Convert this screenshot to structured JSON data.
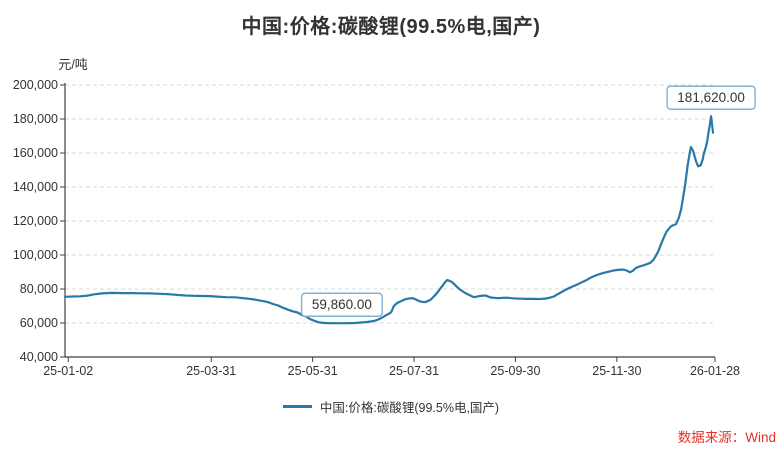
{
  "title": "中国:价格:碳酸锂(99.5%电,国产)",
  "source_note": "数据来源：Wind",
  "colors": {
    "line": "#2878a8",
    "grid": "#d9d9d9",
    "axis": "#404040",
    "text": "#333333",
    "annotation_border": "#7fb2d5",
    "source_text": "#e8302a",
    "background": "#ffffff"
  },
  "chart_data": {
    "type": "line",
    "title": "中国:价格:碳酸锂(99.5%电,国产)",
    "y_unit": "元/吨",
    "ylim": [
      40000,
      200000
    ],
    "y_ticks": [
      40000,
      60000,
      80000,
      100000,
      120000,
      140000,
      160000,
      180000,
      200000
    ],
    "x_tick_labels": [
      "25-01-02",
      "25-03-31",
      "25-05-31",
      "25-07-31",
      "25-09-30",
      "25-11-30",
      "26-01-28"
    ],
    "x_tick_pos": [
      0.005,
      0.225,
      0.381,
      0.537,
      0.693,
      0.849,
      1.0
    ],
    "grid": "horizontal-dashed",
    "legend": {
      "position": "bottom-center",
      "label": "中国:价格:碳酸锂(99.5%电,国产)"
    },
    "annotations": [
      {
        "text": "59,860.00",
        "point": [
          0.426,
          59860
        ]
      },
      {
        "text": "181,620.00",
        "point": [
          0.994,
          181620
        ]
      }
    ],
    "series": [
      {
        "name": "中国:价格:碳酸锂(99.5%电,国产)",
        "points": [
          [
            0.0,
            75400
          ],
          [
            0.012,
            75600
          ],
          [
            0.023,
            75700
          ],
          [
            0.035,
            76100
          ],
          [
            0.045,
            76900
          ],
          [
            0.057,
            77400
          ],
          [
            0.072,
            77700
          ],
          [
            0.088,
            77600
          ],
          [
            0.102,
            77600
          ],
          [
            0.117,
            77500
          ],
          [
            0.131,
            77400
          ],
          [
            0.145,
            77200
          ],
          [
            0.158,
            77000
          ],
          [
            0.171,
            76600
          ],
          [
            0.185,
            76200
          ],
          [
            0.198,
            76000
          ],
          [
            0.212,
            75900
          ],
          [
            0.223,
            75800
          ],
          [
            0.234,
            75500
          ],
          [
            0.248,
            75200
          ],
          [
            0.262,
            75100
          ],
          [
            0.274,
            74600
          ],
          [
            0.282,
            74300
          ],
          [
            0.291,
            73800
          ],
          [
            0.297,
            73400
          ],
          [
            0.305,
            72800
          ],
          [
            0.312,
            72300
          ],
          [
            0.32,
            71200
          ],
          [
            0.328,
            70300
          ],
          [
            0.335,
            69000
          ],
          [
            0.343,
            67800
          ],
          [
            0.351,
            66800
          ],
          [
            0.358,
            66200
          ],
          [
            0.365,
            64600
          ],
          [
            0.371,
            63800
          ],
          [
            0.377,
            62300
          ],
          [
            0.382,
            61500
          ],
          [
            0.388,
            60700
          ],
          [
            0.392,
            60300
          ],
          [
            0.4,
            60000
          ],
          [
            0.408,
            59900
          ],
          [
            0.417,
            59880
          ],
          [
            0.426,
            59860
          ],
          [
            0.436,
            59900
          ],
          [
            0.446,
            60000
          ],
          [
            0.455,
            60300
          ],
          [
            0.463,
            60500
          ],
          [
            0.47,
            60900
          ],
          [
            0.475,
            61200
          ],
          [
            0.481,
            61900
          ],
          [
            0.486,
            62800
          ],
          [
            0.491,
            63900
          ],
          [
            0.495,
            64800
          ],
          [
            0.499,
            65600
          ],
          [
            0.502,
            66500
          ],
          [
            0.506,
            70000
          ],
          [
            0.511,
            71800
          ],
          [
            0.515,
            72500
          ],
          [
            0.52,
            73400
          ],
          [
            0.525,
            74200
          ],
          [
            0.53,
            74500
          ],
          [
            0.535,
            74600
          ],
          [
            0.54,
            73800
          ],
          [
            0.545,
            72900
          ],
          [
            0.549,
            72500
          ],
          [
            0.554,
            72300
          ],
          [
            0.558,
            72800
          ],
          [
            0.563,
            73800
          ],
          [
            0.568,
            75800
          ],
          [
            0.574,
            78500
          ],
          [
            0.578,
            80600
          ],
          [
            0.582,
            82500
          ],
          [
            0.585,
            84200
          ],
          [
            0.588,
            85300
          ],
          [
            0.591,
            84900
          ],
          [
            0.595,
            84200
          ],
          [
            0.599,
            82800
          ],
          [
            0.603,
            81300
          ],
          [
            0.607,
            79900
          ],
          [
            0.612,
            78600
          ],
          [
            0.616,
            77600
          ],
          [
            0.62,
            76800
          ],
          [
            0.625,
            75900
          ],
          [
            0.629,
            75200
          ],
          [
            0.634,
            75500
          ],
          [
            0.638,
            75900
          ],
          [
            0.643,
            76100
          ],
          [
            0.648,
            76100
          ],
          [
            0.651,
            75500
          ],
          [
            0.655,
            75000
          ],
          [
            0.66,
            74800
          ],
          [
            0.666,
            74600
          ],
          [
            0.673,
            74800
          ],
          [
            0.68,
            74900
          ],
          [
            0.687,
            74600
          ],
          [
            0.694,
            74400
          ],
          [
            0.702,
            74300
          ],
          [
            0.709,
            74200
          ],
          [
            0.717,
            74200
          ],
          [
            0.726,
            74100
          ],
          [
            0.733,
            74200
          ],
          [
            0.74,
            74400
          ],
          [
            0.746,
            74900
          ],
          [
            0.752,
            75600
          ],
          [
            0.757,
            76700
          ],
          [
            0.763,
            78000
          ],
          [
            0.77,
            79500
          ],
          [
            0.777,
            80800
          ],
          [
            0.783,
            81800
          ],
          [
            0.789,
            82800
          ],
          [
            0.795,
            84000
          ],
          [
            0.802,
            85200
          ],
          [
            0.808,
            86500
          ],
          [
            0.814,
            87600
          ],
          [
            0.82,
            88500
          ],
          [
            0.826,
            89200
          ],
          [
            0.832,
            89800
          ],
          [
            0.838,
            90300
          ],
          [
            0.843,
            90800
          ],
          [
            0.849,
            91200
          ],
          [
            0.855,
            91400
          ],
          [
            0.86,
            91400
          ],
          [
            0.865,
            90700
          ],
          [
            0.869,
            89800
          ],
          [
            0.874,
            90800
          ],
          [
            0.878,
            92300
          ],
          [
            0.883,
            93100
          ],
          [
            0.889,
            93800
          ],
          [
            0.894,
            94500
          ],
          [
            0.9,
            95300
          ],
          [
            0.905,
            97000
          ],
          [
            0.909,
            99500
          ],
          [
            0.913,
            102500
          ],
          [
            0.917,
            106500
          ],
          [
            0.921,
            110000
          ],
          [
            0.925,
            113500
          ],
          [
            0.929,
            115500
          ],
          [
            0.932,
            116800
          ],
          [
            0.936,
            117600
          ],
          [
            0.94,
            118200
          ],
          [
            0.944,
            121500
          ],
          [
            0.948,
            127000
          ],
          [
            0.951,
            134000
          ],
          [
            0.954,
            141000
          ],
          [
            0.956,
            147000
          ],
          [
            0.958,
            153000
          ],
          [
            0.961,
            159500
          ],
          [
            0.963,
            163500
          ],
          [
            0.966,
            161500
          ],
          [
            0.968,
            159000
          ],
          [
            0.971,
            155000
          ],
          [
            0.974,
            152200
          ],
          [
            0.978,
            152800
          ],
          [
            0.981,
            156000
          ],
          [
            0.983,
            160000
          ],
          [
            0.986,
            163500
          ],
          [
            0.988,
            167000
          ],
          [
            0.99,
            172000
          ],
          [
            0.992,
            176500
          ],
          [
            0.994,
            181620
          ],
          [
            0.997,
            172000
          ]
        ]
      }
    ]
  }
}
